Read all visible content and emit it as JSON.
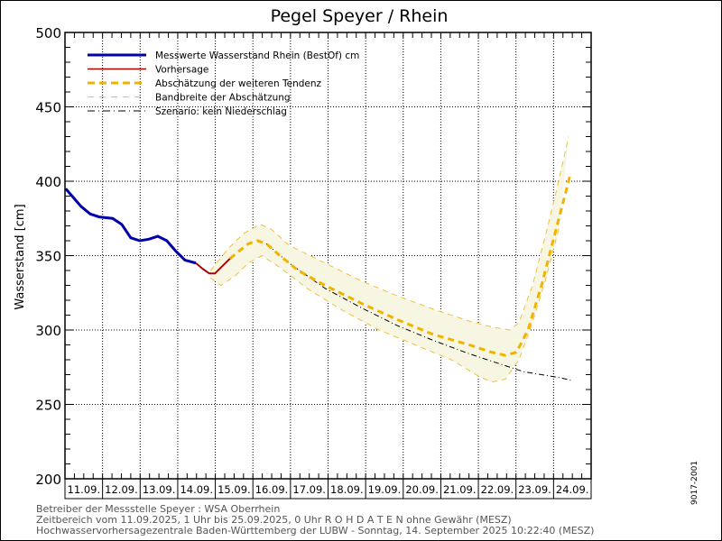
{
  "chart_data": {
    "type": "line",
    "title": "Pegel Speyer / Rhein",
    "ylabel": "Wasserstand [cm]",
    "xlabel": "",
    "ylim": [
      200,
      500
    ],
    "yticks": [
      200,
      250,
      300,
      350,
      400,
      450,
      500
    ],
    "xlim_days": [
      0,
      14
    ],
    "x_unit": "days since 11.09.2025 00:00",
    "categories": [
      "11.09.",
      "12.09.",
      "13.09.",
      "14.09.",
      "15.09.",
      "16.09.",
      "17.09.",
      "18.09.",
      "19.09.",
      "20.09.",
      "21.09.",
      "22.09.",
      "23.09.",
      "24.09."
    ],
    "grid": true,
    "legend_position": "top-left",
    "series": [
      {
        "name": "Messwerte Wasserstand Rhein (BestOf)  cm",
        "style": "solid-thick",
        "color": "#0000aa",
        "x": [
          0.02,
          0.19,
          0.43,
          0.67,
          0.91,
          1.27,
          1.51,
          1.75,
          1.99,
          2.23,
          2.47,
          2.71,
          2.95,
          3.19,
          3.48
        ],
        "y": [
          395,
          390,
          383,
          378,
          376,
          375,
          371,
          362,
          360,
          361,
          363,
          360,
          353,
          347,
          345
        ]
      },
      {
        "name": "Vorhersage",
        "style": "solid",
        "color": "#aa0000",
        "x": [
          3.48,
          3.67,
          3.84,
          3.99,
          4.15,
          4.39
        ],
        "y": [
          345,
          341,
          338,
          338,
          342,
          348
        ]
      },
      {
        "name": "Abschätzung der weiteren Tendenz",
        "style": "dashed-thick",
        "color": "#f0b400",
        "x": [
          4.39,
          4.63,
          4.88,
          5.12,
          5.36,
          5.72,
          6.2,
          6.92,
          7.88,
          8.84,
          9.8,
          10.76,
          11.36,
          11.72,
          12.01,
          12.32,
          12.68,
          13.04,
          13.45
        ],
        "y": [
          348,
          353,
          358,
          360,
          358,
          350,
          340,
          330,
          318,
          307,
          297,
          290,
          285,
          283,
          285,
          300,
          330,
          365,
          405
        ]
      },
      {
        "name": "Bandbreite der Abschätzung",
        "style": "dashed-thin",
        "color": "#f0c040",
        "upper_x": [
          3.87,
          4.39,
          4.76,
          5.19,
          5.48,
          5.96,
          6.92,
          7.88,
          8.84,
          9.8,
          10.76,
          11.36,
          11.84,
          12.08,
          12.44,
          12.8,
          13.09,
          13.4
        ],
        "upper_y": [
          340,
          356,
          365,
          371,
          368,
          357,
          345,
          333,
          323,
          314,
          306,
          302,
          300,
          305,
          330,
          365,
          395,
          430
        ],
        "lower_x": [
          3.87,
          4.15,
          4.51,
          4.88,
          5.24,
          5.72,
          6.44,
          7.4,
          8.36,
          9.32,
          10.28,
          11.0,
          11.36,
          11.72,
          12.08,
          12.44,
          12.8,
          13.16
        ],
        "lower_y": [
          335,
          330,
          336,
          345,
          350,
          342,
          328,
          313,
          300,
          290,
          280,
          269,
          265,
          267,
          280,
          305,
          335,
          370
        ]
      },
      {
        "name": "Szenario: kein Niederschlag",
        "style": "dash-dot",
        "color": "#000000",
        "x": [
          5.36,
          5.96,
          6.92,
          7.88,
          8.84,
          9.8,
          10.76,
          11.72,
          12.2,
          12.68,
          13.16,
          13.5
        ],
        "y": [
          358,
          345,
          328,
          315,
          303,
          293,
          284,
          276,
          272,
          270,
          268,
          266
        ]
      }
    ]
  },
  "footer": {
    "line1": "Betreiber der Messstelle Speyer : WSA Oberrhein",
    "line2": "Zeitbereich vom 11.09.2025, 1 Uhr bis 25.09.2025, 0 Uhr   R O H D A T E N ohne Gewähr (MESZ)",
    "line3": "Hochwasservorhersagezentrale Baden-Württemberg der LUBW - Sonntag, 14. September 2025 10:22:40 (MESZ)",
    "side_code": "9017-2001"
  }
}
